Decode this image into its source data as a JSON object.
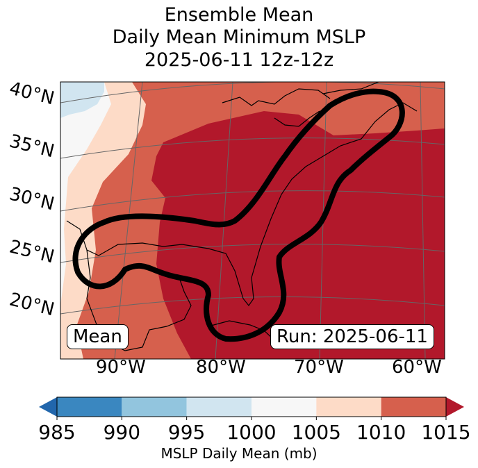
{
  "title": {
    "line1": "Ensemble Mean",
    "line2": "Daily Mean Minimum MSLP",
    "line3": "2025-06-11 12z-12z"
  },
  "latitude_labels": [
    "40°N",
    "35°N",
    "30°N",
    "25°N",
    "20°N"
  ],
  "longitude_labels": [
    "90°W",
    "80°W",
    "70°W",
    "60°W"
  ],
  "panel_labels": {
    "left": "Mean",
    "right": "Run: 2025-06-11"
  },
  "colorbar": {
    "label": "MSLP Daily Mean (mb)",
    "ticks": [
      "985",
      "990",
      "995",
      "1000",
      "1005",
      "1010",
      "1015"
    ],
    "bins": [
      {
        "from": 985,
        "to": 990,
        "color": "#3a87c0"
      },
      {
        "from": 990,
        "to": 995,
        "color": "#92c5de"
      },
      {
        "from": 995,
        "to": 1000,
        "color": "#d1e5f0"
      },
      {
        "from": 1000,
        "to": 1005,
        "color": "#f7f7f7"
      },
      {
        "from": 1005,
        "to": 1010,
        "color": "#fddbc7"
      },
      {
        "from": 1010,
        "to": 1015,
        "color": "#d6604d"
      }
    ],
    "under_color": "#2166ac",
    "over_color": "#b2182b"
  }
}
